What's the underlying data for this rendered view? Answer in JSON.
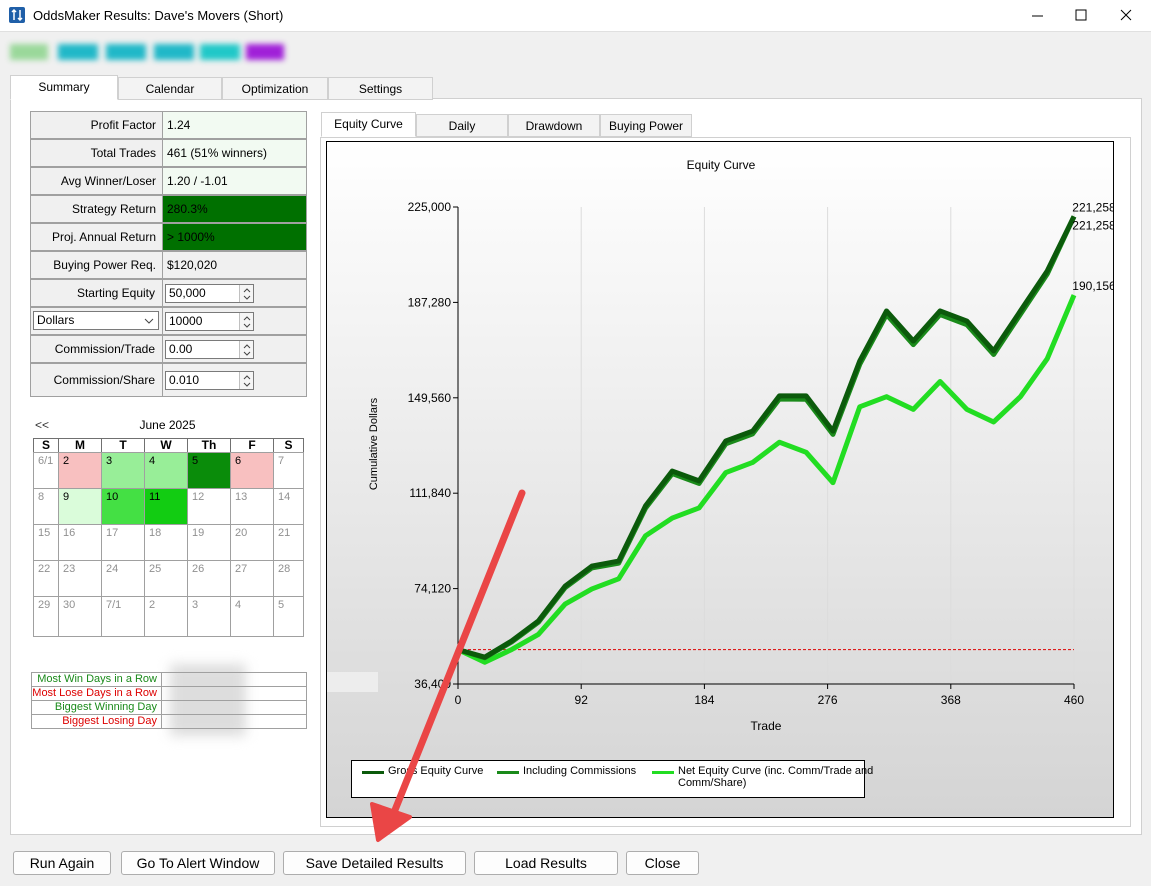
{
  "window": {
    "title": "OddsMaker Results: Dave's Movers (Short)"
  },
  "tabs": [
    "Summary",
    "Calendar",
    "Optimization",
    "Settings"
  ],
  "stats": [
    {
      "label": "Profit Factor",
      "value": "1.24"
    },
    {
      "label": "Total Trades",
      "value": "461 (51% winners)"
    },
    {
      "label": "Avg Winner/Loser",
      "value": "1.20 / -1.01"
    },
    {
      "label": "Strategy Return",
      "value": "280.3%",
      "highlight": "#007000"
    },
    {
      "label": "Proj. Annual Return",
      "value": "> 1000%",
      "highlight": "#007000"
    },
    {
      "label": "Buying Power Req.",
      "value": "$120,020"
    }
  ],
  "inputs": [
    {
      "label": "Starting Equity",
      "value": "50,000"
    },
    {
      "label": "Dollars",
      "value": "10000",
      "dropdown": true
    },
    {
      "label": "Commission/Trade",
      "value": "0.00"
    },
    {
      "label": "Commission/Share",
      "value": "0.010"
    }
  ],
  "calendar": {
    "nav": "<<",
    "month": "June 2025",
    "weekdays": [
      "S",
      "M",
      "T",
      "W",
      "Th",
      "F",
      "S"
    ],
    "weeks": [
      [
        {
          "day": "6/1"
        },
        {
          "day": "2",
          "color": "#f8c0c0"
        },
        {
          "day": "3",
          "color": "#98ee98"
        },
        {
          "day": "4",
          "color": "#98ee98"
        },
        {
          "day": "5",
          "color": "#0a8c0a"
        },
        {
          "day": "6",
          "color": "#f8c0c0"
        },
        {
          "day": "7"
        }
      ],
      [
        {
          "day": "8"
        },
        {
          "day": "9",
          "color": "#dafcda"
        },
        {
          "day": "10",
          "color": "#44e044"
        },
        {
          "day": "11",
          "color": "#12cc12"
        },
        {
          "day": "12"
        },
        {
          "day": "13"
        },
        {
          "day": "14"
        }
      ],
      [
        {
          "day": "15"
        },
        {
          "day": "16"
        },
        {
          "day": "17"
        },
        {
          "day": "18"
        },
        {
          "day": "19"
        },
        {
          "day": "20"
        },
        {
          "day": "21"
        }
      ],
      [
        {
          "day": "22"
        },
        {
          "day": "23"
        },
        {
          "day": "24"
        },
        {
          "day": "25"
        },
        {
          "day": "26"
        },
        {
          "day": "27"
        },
        {
          "day": "28"
        }
      ],
      [
        {
          "day": "29"
        },
        {
          "day": "30"
        },
        {
          "day": "7/1"
        },
        {
          "day": "2"
        },
        {
          "day": "3"
        },
        {
          "day": "4"
        },
        {
          "day": "5"
        }
      ]
    ]
  },
  "streaks": [
    {
      "label": "Most Win Days in a Row",
      "color": "#1a8a1a"
    },
    {
      "label": "Most Lose Days in a Row",
      "color": "#dd0000"
    },
    {
      "label": "Biggest Winning Day",
      "color": "#1a8a1a"
    },
    {
      "label": "Biggest Losing Day",
      "color": "#dd0000"
    }
  ],
  "chart_tabs": [
    "Equity Curve",
    "Daily",
    "Drawdown",
    "Buying Power"
  ],
  "chart_data": {
    "type": "line",
    "title": "Equity Curve",
    "x_label": "Trade",
    "y_label": "Cumulative Dollars",
    "x": [
      0,
      20,
      40,
      60,
      80,
      100,
      120,
      140,
      160,
      180,
      200,
      220,
      240,
      260,
      280,
      300,
      320,
      340,
      360,
      380,
      400,
      420,
      440,
      460
    ],
    "xlim": [
      0,
      460
    ],
    "xticks": [
      0,
      92,
      184,
      276,
      368,
      460
    ],
    "ylim": [
      36400,
      225000
    ],
    "yticks": [
      {
        "value": 36400,
        "label": "36,400"
      },
      {
        "value": 74120,
        "label": "74,120"
      },
      {
        "value": 111840,
        "label": "111,840"
      },
      {
        "value": 149560,
        "label": "149,560"
      },
      {
        "value": 187280,
        "label": "187,280"
      },
      {
        "value": 225000,
        "label": "225,000"
      }
    ],
    "grid": "x",
    "reference_line": {
      "value": 50000,
      "color": "#dd0000"
    },
    "series": [
      {
        "name": "Gross Equity Curve",
        "color": "#0b5a0b",
        "values": [
          50000,
          47000,
          53400,
          61300,
          75100,
          83000,
          85000,
          106800,
          120600,
          116700,
          132500,
          136400,
          150300,
          150300,
          136400,
          164100,
          183900,
          172000,
          183900,
          179900,
          168100,
          183900,
          199700,
          221258
        ],
        "value_labels": [
          null,
          null,
          null,
          null,
          null,
          null,
          null,
          null,
          null,
          null,
          null,
          null,
          null,
          null,
          null,
          null,
          null,
          null,
          null,
          null,
          null,
          null,
          null,
          "221,258"
        ]
      },
      {
        "name": "Including Commissions",
        "color": "#1a8a1a",
        "values": [
          50000,
          46800,
          53000,
          60800,
          74500,
          82300,
          84200,
          105900,
          119600,
          115700,
          131400,
          135300,
          149100,
          149000,
          135100,
          162800,
          182500,
          170600,
          182500,
          178500,
          166700,
          182600,
          198500,
          221258
        ],
        "value_labels": [
          null,
          null,
          null,
          null,
          null,
          null,
          null,
          null,
          null,
          null,
          null,
          null,
          null,
          null,
          null,
          null,
          null,
          null,
          null,
          null,
          null,
          null,
          null,
          "221,258"
        ]
      },
      {
        "name": "Net Equity Curve (inc. Comm/Trade and Comm/Share)",
        "color": "#22dd22",
        "values": [
          50000,
          45000,
          50000,
          56000,
          68000,
          74000,
          78000,
          95000,
          102000,
          106000,
          120000,
          124000,
          132000,
          128000,
          116000,
          146000,
          150000,
          145000,
          156000,
          145000,
          140000,
          150000,
          165000,
          190156
        ],
        "value_labels": [
          null,
          null,
          null,
          null,
          null,
          null,
          null,
          null,
          null,
          null,
          null,
          null,
          null,
          null,
          null,
          null,
          null,
          null,
          null,
          null,
          null,
          null,
          null,
          "190,156"
        ]
      }
    ]
  },
  "buttons": [
    "Run Again",
    "Go To Alert Window",
    "Save Detailed Results",
    "Load Results",
    "Close"
  ]
}
